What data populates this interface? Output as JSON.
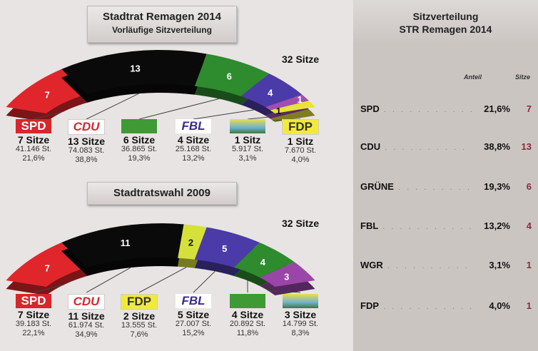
{
  "chart_data": [
    {
      "type": "semi-donut",
      "title": "Stadtrat Remagen 2014",
      "subtitle": "Vorläufige Sitzverteilung",
      "total_label": "32 Sitze",
      "parties": [
        {
          "name": "SPD",
          "seats": 7,
          "seats_label": "7 Sitze",
          "votes": "41.146 St.",
          "pct": "21,6%",
          "color": "#e0262b"
        },
        {
          "name": "CDU",
          "seats": 13,
          "seats_label": "13 Sitze",
          "votes": "74.083 St.",
          "pct": "38,8%",
          "color": "#0a0a0a"
        },
        {
          "name": "GRÜNE",
          "seats": 6,
          "seats_label": "6 Sitze",
          "votes": "36.865 St.",
          "pct": "19,3%",
          "color": "#2e8b2e"
        },
        {
          "name": "FBL",
          "seats": 4,
          "seats_label": "4 Sitze",
          "votes": "25.168 St.",
          "pct": "13,2%",
          "color": "#4b3ba8"
        },
        {
          "name": "WGR",
          "seats": 1,
          "seats_label": "1 Sitz",
          "votes": "5.917 St.",
          "pct": "3,1%",
          "color": "#a04fb0"
        },
        {
          "name": "FDP",
          "seats": 1,
          "seats_label": "1 Sitz",
          "votes": "7.670 St.",
          "pct": "4,0%",
          "color": "#e8e23a"
        }
      ]
    },
    {
      "type": "semi-donut",
      "title": "Stadtratswahl 2009",
      "total_label": "32 Sitze",
      "parties": [
        {
          "name": "SPD",
          "seats": 7,
          "seats_label": "7 Sitze",
          "votes": "39.183 St.",
          "pct": "22,1%",
          "color": "#e0262b"
        },
        {
          "name": "CDU",
          "seats": 11,
          "seats_label": "11 Sitze",
          "votes": "61.974 St.",
          "pct": "34,9%",
          "color": "#0a0a0a"
        },
        {
          "name": "FDP",
          "seats": 2,
          "seats_label": "2 Sitze",
          "votes": "13.555 St.",
          "pct": "7,6%",
          "color": "#d6e03a"
        },
        {
          "name": "FBL",
          "seats": 5,
          "seats_label": "5 Sitze",
          "votes": "27.007 St.",
          "pct": "15,2%",
          "color": "#4b3ba8"
        },
        {
          "name": "GRÜNE",
          "seats": 4,
          "seats_label": "4 Sitze",
          "votes": "20.892 St.",
          "pct": "11,8%",
          "color": "#2e8b2e"
        },
        {
          "name": "WGR",
          "seats": 3,
          "seats_label": "3 Sitze",
          "votes": "14.799 St.",
          "pct": "8,3%",
          "color": "#9a45a8"
        }
      ]
    }
  ],
  "panel": {
    "title1": "Sitzverteilung",
    "title2": "STR Remagen 2014",
    "col_share": "Anteil",
    "col_seats": "Sitze",
    "rows": [
      {
        "name": "SPD",
        "pct": "21,6%",
        "seats": "7"
      },
      {
        "name": "CDU",
        "pct": "38,8%",
        "seats": "13"
      },
      {
        "name": "GRÜNE",
        "pct": "19,3%",
        "seats": "6"
      },
      {
        "name": "FBL",
        "pct": "13,2%",
        "seats": "4"
      },
      {
        "name": "WGR",
        "pct": "3,1%",
        "seats": "1"
      },
      {
        "name": "FDP",
        "pct": "4,0%",
        "seats": "1"
      }
    ],
    "seats_color": "#8b2a3a"
  }
}
